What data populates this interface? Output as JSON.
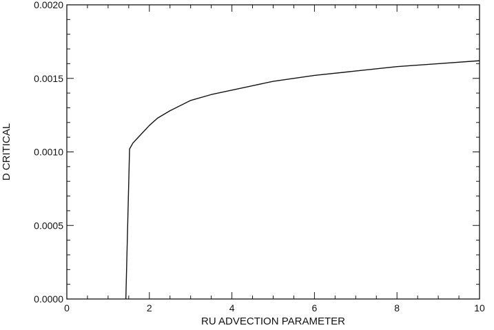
{
  "chart_data": {
    "type": "line",
    "title": "",
    "xlabel": "RU ADVECTION PARAMETER",
    "ylabel": "D CRITICAL",
    "xlim": [
      0,
      10
    ],
    "ylim": [
      0,
      0.002
    ],
    "x_ticks": [
      0,
      2,
      4,
      6,
      8,
      10
    ],
    "x_tick_labels": [
      "0",
      "2",
      "4",
      "6",
      "8",
      "10"
    ],
    "y_ticks": [
      0,
      0.0005,
      0.001,
      0.0015,
      0.002
    ],
    "y_tick_labels": [
      "0.0000",
      "0.0005",
      "0.0010",
      "0.0015",
      "0.0020"
    ],
    "grid": false,
    "legend": "none",
    "series": [
      {
        "color": "#111111",
        "x": [
          1.43,
          1.52,
          1.6,
          1.7,
          1.8,
          2.0,
          2.2,
          2.5,
          3.0,
          3.5,
          4.0,
          4.5,
          5.0,
          6.0,
          7.0,
          8.0,
          9.0,
          10.0
        ],
        "y": [
          0.0,
          0.00102,
          0.00106,
          0.00109,
          0.00112,
          0.00118,
          0.00123,
          0.00128,
          0.00135,
          0.00139,
          0.00142,
          0.00145,
          0.00148,
          0.00152,
          0.00155,
          0.00158,
          0.0016,
          0.00162
        ]
      }
    ]
  }
}
